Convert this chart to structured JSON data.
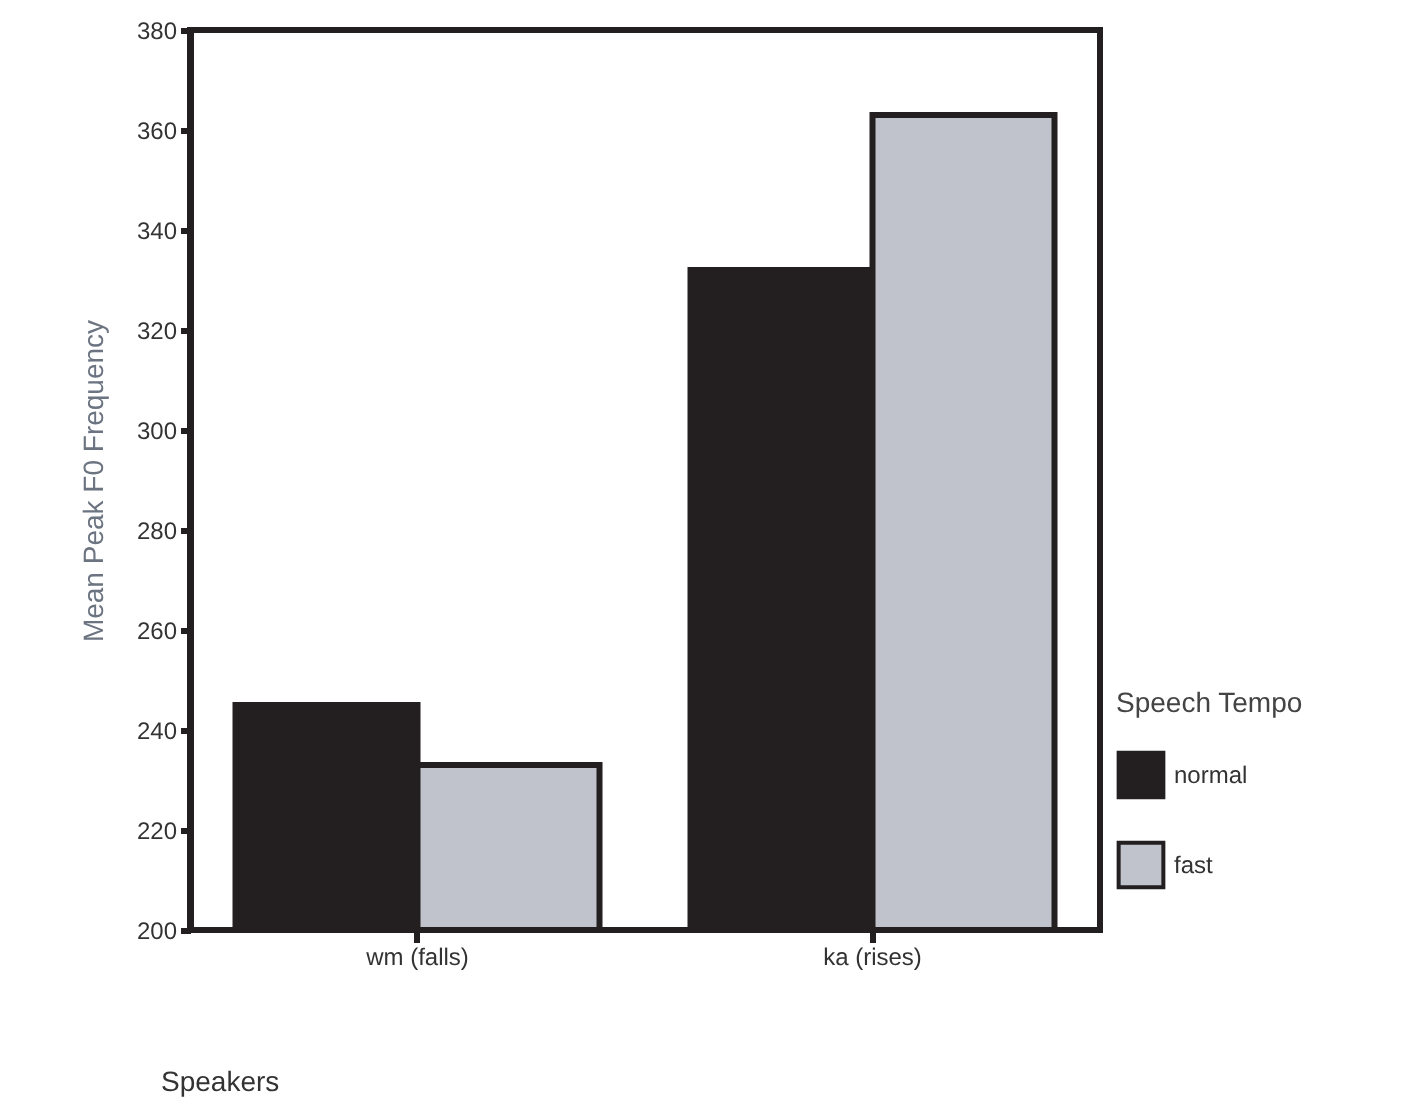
{
  "chart_data": {
    "type": "bar",
    "categories": [
      "wm (falls)",
      "ka (rises)"
    ],
    "xlabel": "Speakers",
    "ylabel": "Mean Peak F0 Frequency",
    "legend_title": "Speech Tempo",
    "series": [
      {
        "name": "normal",
        "color": "#231f20",
        "values": [
          245,
          332
        ]
      },
      {
        "name": "fast",
        "color": "#c0c3cb",
        "values": [
          233,
          363
        ]
      }
    ],
    "ylim": [
      200,
      380
    ],
    "yticks": [
      200,
      220,
      240,
      260,
      280,
      300,
      320,
      340,
      360,
      380
    ],
    "grid": false,
    "legend": "right"
  }
}
